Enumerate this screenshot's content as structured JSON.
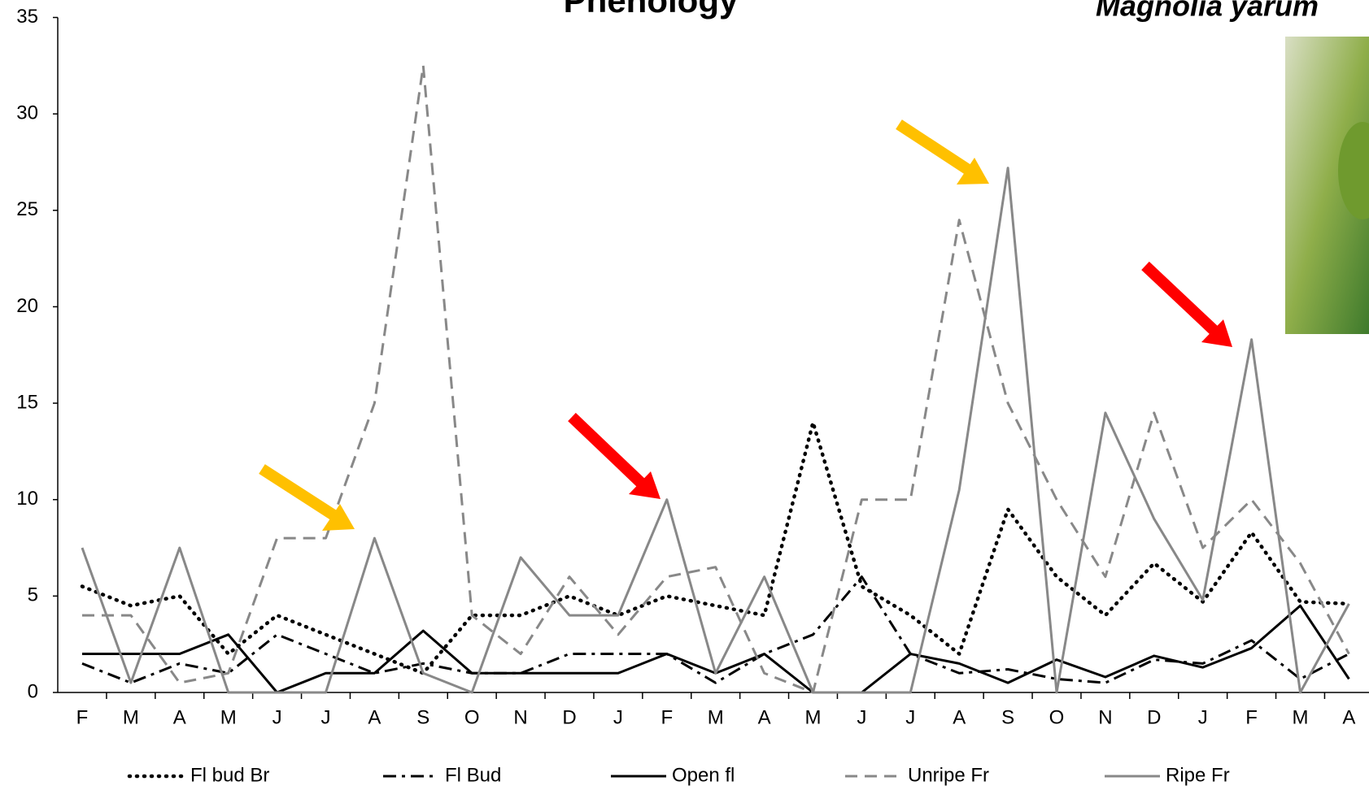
{
  "chart_data": {
    "type": "line",
    "title": "Phenology",
    "subtitle": "Magnolia yarum",
    "categories": [
      "F",
      "M",
      "A",
      "M",
      "J",
      "J",
      "A",
      "S",
      "O",
      "N",
      "D",
      "J",
      "F",
      "M",
      "A",
      "M",
      "J",
      "J",
      "A",
      "S",
      "O",
      "N",
      "D",
      "J",
      "F",
      "M",
      "A"
    ],
    "series": [
      {
        "name": "Fl bud Br",
        "color": "#000000",
        "line_style": "dotted",
        "values": [
          5.5,
          4.5,
          5,
          2,
          4,
          3,
          2,
          1,
          4,
          4,
          5,
          4,
          5,
          4.5,
          4,
          14,
          5.5,
          4,
          2,
          9.5,
          6,
          4,
          6.7,
          4.7,
          8.3,
          4.7,
          4.6
        ]
      },
      {
        "name": "Fl Bud",
        "color": "#000000",
        "line_style": "dashdot",
        "values": [
          1.5,
          0.5,
          1.5,
          1,
          3,
          2,
          1,
          1.5,
          1,
          1,
          2,
          2,
          2,
          0.5,
          2,
          3,
          6,
          2,
          1,
          1.2,
          0.7,
          0.5,
          1.7,
          1.5,
          2.7,
          0.7,
          2
        ]
      },
      {
        "name": "Open fl",
        "color": "#000000",
        "line_style": "solid",
        "values": [
          2,
          2,
          2,
          3,
          0,
          1,
          1,
          3.2,
          1,
          1,
          1,
          1,
          2,
          1,
          2,
          0,
          0,
          2,
          1.5,
          0.5,
          1.7,
          0.8,
          1.9,
          1.3,
          2.3,
          4.5,
          0.7
        ]
      },
      {
        "name": "Unripe Fr",
        "color": "#888888",
        "line_style": "dashed",
        "values": [
          4,
          4,
          0.5,
          1,
          8,
          8,
          15,
          32.5,
          4,
          2,
          6,
          3,
          6,
          6.5,
          1,
          0,
          10,
          10,
          24.5,
          15,
          10,
          6,
          14.5,
          7.5,
          10,
          6.7,
          2
        ]
      },
      {
        "name": "Ripe Fr",
        "color": "#888888",
        "line_style": "solid",
        "values": [
          7.5,
          0.5,
          7.5,
          0,
          0,
          0,
          8,
          1,
          0,
          7,
          4,
          4,
          10,
          1,
          6,
          0,
          0,
          0,
          10.5,
          27.2,
          0,
          14.5,
          9,
          4.8,
          18.3,
          0,
          4.6
        ]
      }
    ],
    "ylim": [
      0,
      35
    ],
    "yticks": [
      0,
      5,
      10,
      15,
      20,
      25,
      30,
      35
    ],
    "legend": "bottom"
  }
}
